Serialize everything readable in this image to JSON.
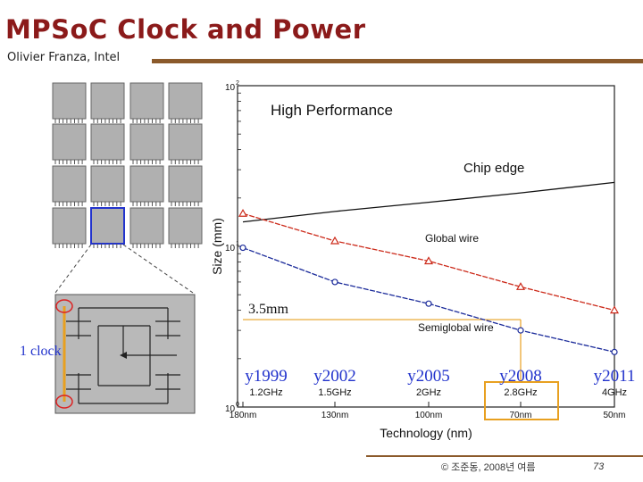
{
  "slide": {
    "title": "MPSoC Clock and Power",
    "subtitle": "Olivier Franza, Intel",
    "copyright": "© 조준동, 2008년 여름",
    "page_number": "73"
  },
  "die": {
    "clock_label": "1 clock",
    "distance_label": "3.5mm"
  },
  "chart_data": {
    "type": "line",
    "title": "High Performance",
    "xlabel": "Technology (nm)",
    "ylabel": "Size (mm)",
    "y_scale": "log",
    "ylim": [
      1,
      100
    ],
    "y_ticks": [
      "10^0",
      "10^1",
      "10^2"
    ],
    "categories": [
      "180nm",
      "130nm",
      "100nm",
      "70nm",
      "50nm"
    ],
    "x": [
      180,
      130,
      100,
      70,
      50
    ],
    "years": [
      {
        "year": "y1999",
        "freq": "1.2GHz"
      },
      {
        "year": "y2002",
        "freq": "1.5GHz"
      },
      {
        "year": "y2005",
        "freq": "2GHz"
      },
      {
        "year": "y2008",
        "freq": "2.8GHz"
      },
      {
        "year": "y2011",
        "freq": "4GHz"
      }
    ],
    "highlight_category": "70nm",
    "series": [
      {
        "name": "Chip edge",
        "color": "#111111",
        "marker": "none",
        "values": [
          14.2,
          16.5,
          18.8,
          21.5,
          25.0
        ]
      },
      {
        "name": "Global wire",
        "color": "#cc2a1a",
        "marker": "triangle",
        "values": [
          16.0,
          10.8,
          8.1,
          5.6,
          4.0
        ]
      },
      {
        "name": "Semiglobal wire",
        "color": "#1a2a9a",
        "marker": "circle",
        "values": [
          9.8,
          6.0,
          4.4,
          3.0,
          2.2
        ]
      }
    ],
    "annotations": [
      {
        "text": "3.5mm",
        "y": 3.5,
        "x_index": 3
      }
    ],
    "grid": false,
    "colors": {
      "highlight_box": "#e8a020",
      "guide": "#e8a020"
    }
  }
}
